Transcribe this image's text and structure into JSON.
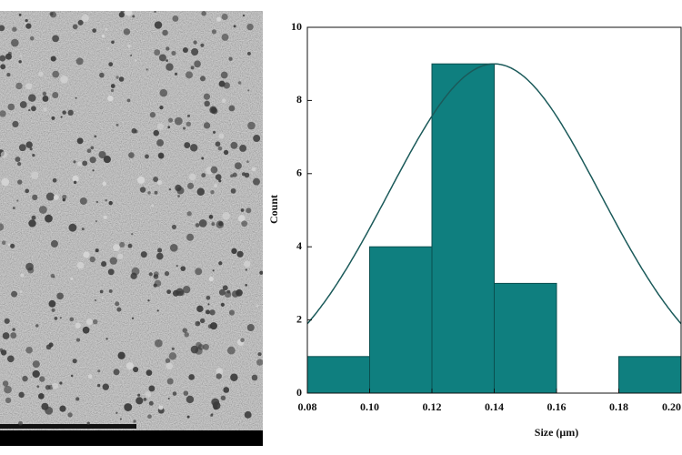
{
  "chart_data": {
    "type": "histogram",
    "xlabel": "Size (μm)",
    "ylabel": "Count",
    "bins": [
      0.08,
      0.1,
      0.12,
      0.14,
      0.16,
      0.18,
      0.2
    ],
    "counts": [
      1,
      4,
      9,
      3,
      0,
      1
    ],
    "color": "#0f7f7f",
    "edge_color": "#0a4f4f",
    "fit": {
      "amplitude": 9,
      "mean": 0.14,
      "sigma": 0.034,
      "color": "#1b5a5a"
    },
    "xlim": [
      0.08,
      0.2
    ],
    "xticks": [
      {
        "value": 0.08,
        "label": "0.08"
      },
      {
        "value": 0.1,
        "label": "0.10"
      },
      {
        "value": 0.12,
        "label": "0.12"
      },
      {
        "value": 0.14,
        "label": "0.14"
      },
      {
        "value": 0.16,
        "label": "0.16"
      },
      {
        "value": 0.18,
        "label": "0.18"
      },
      {
        "value": 0.2,
        "label": "0.20"
      }
    ],
    "ylim": [
      0,
      10
    ],
    "yticks": [
      0,
      2,
      4,
      6,
      8,
      10
    ]
  }
}
